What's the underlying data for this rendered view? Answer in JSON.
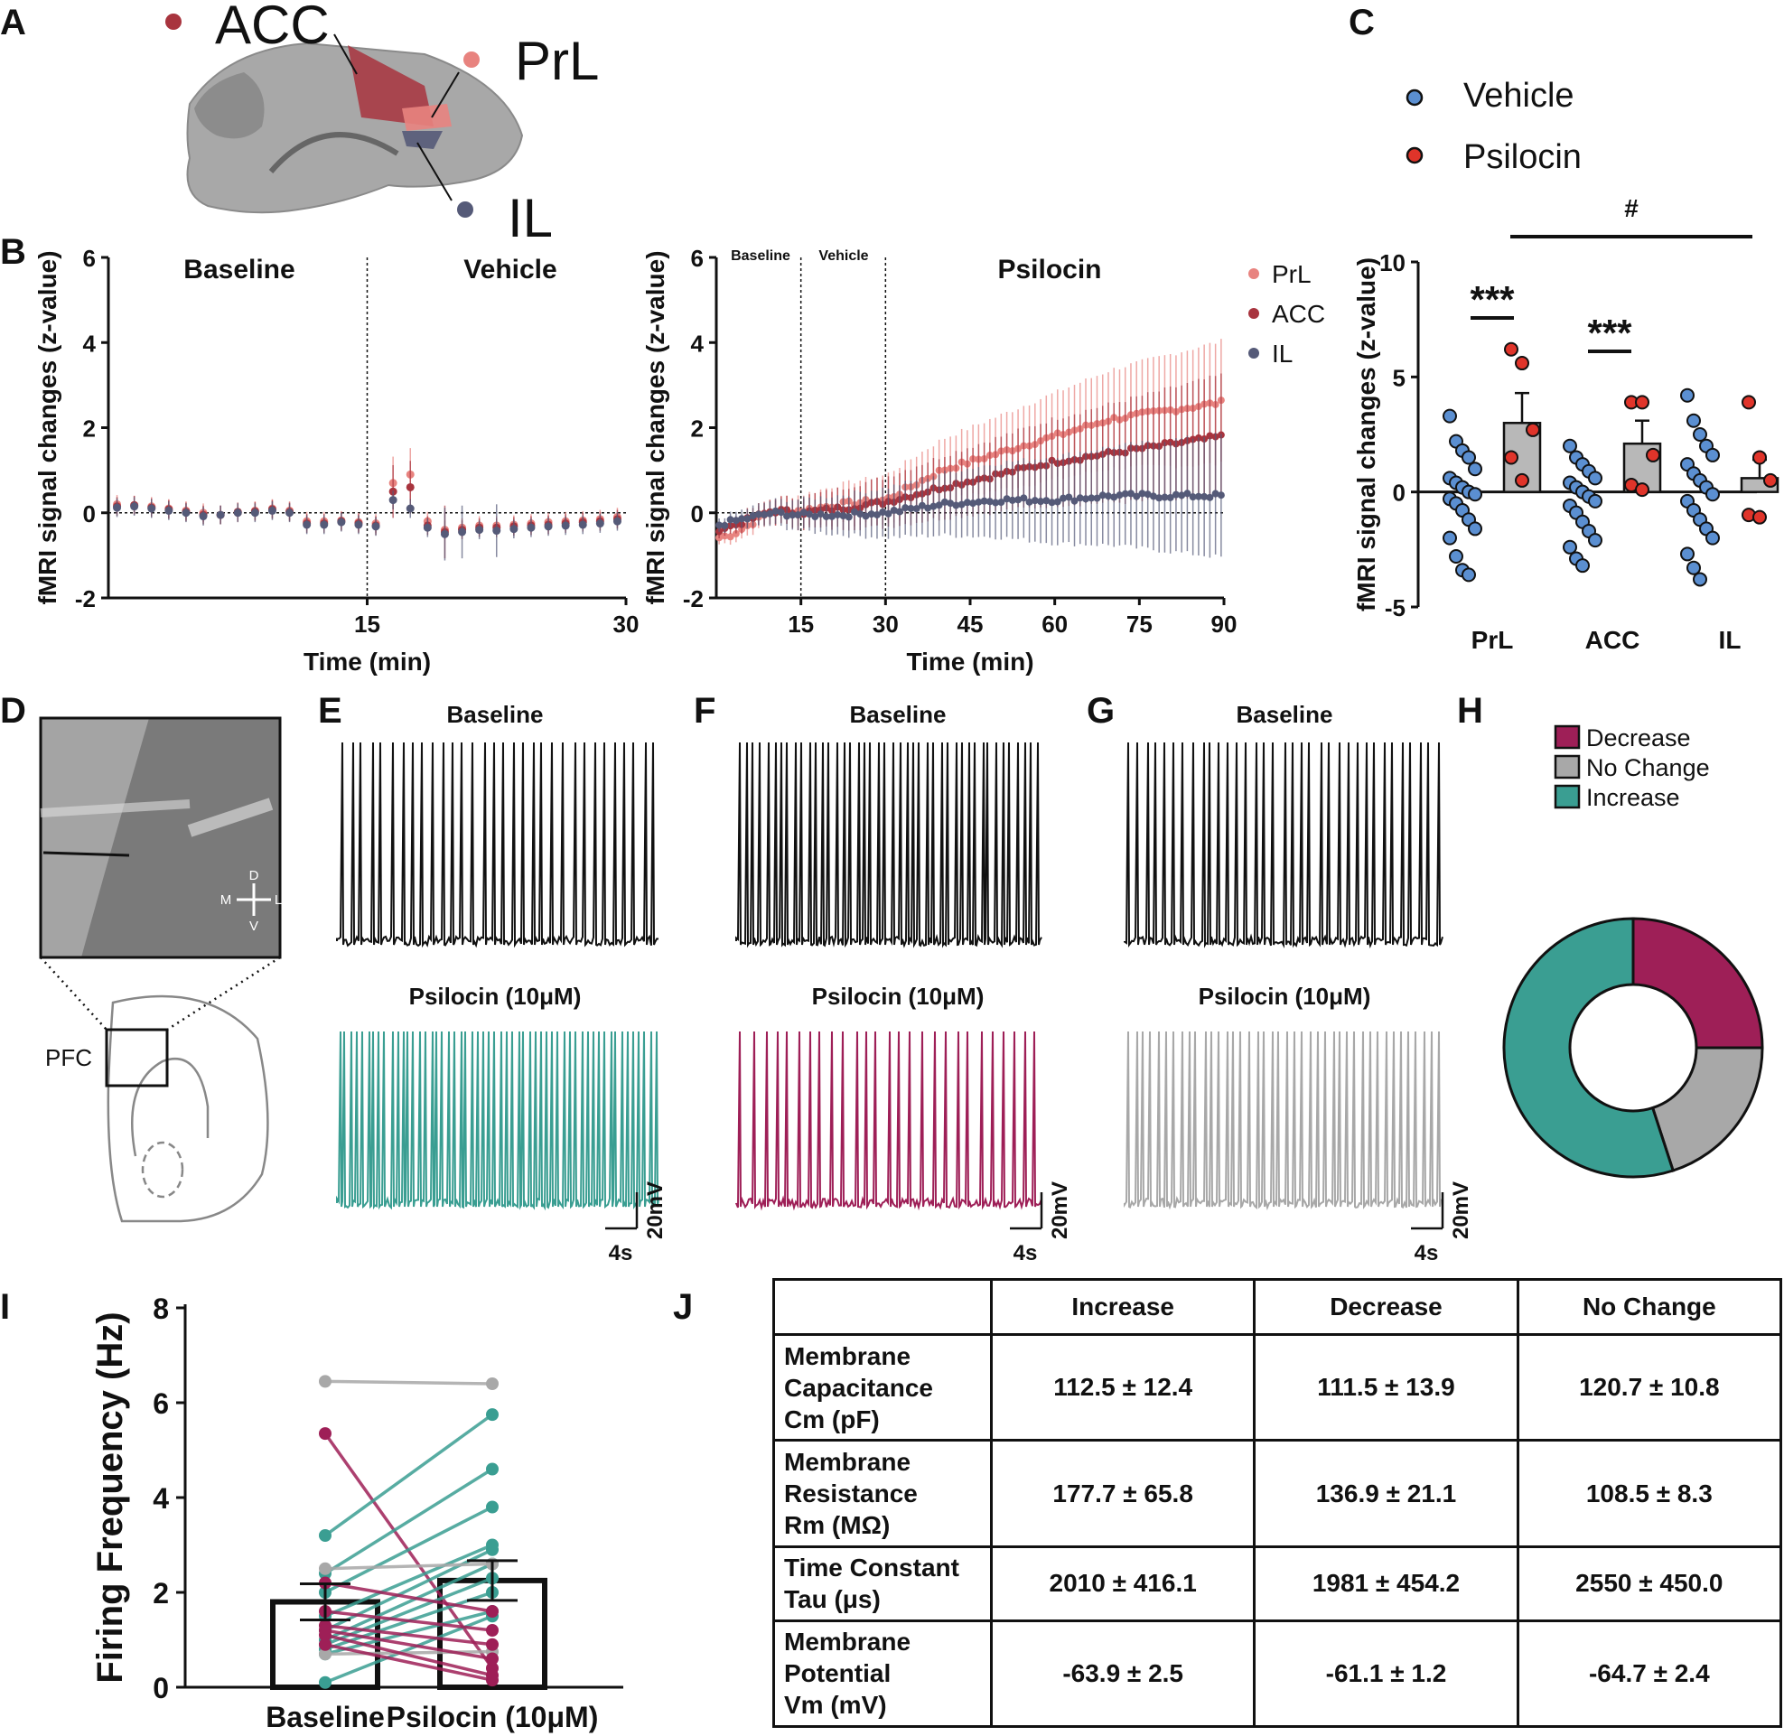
{
  "panel_letters": [
    "A",
    "B",
    "C",
    "D",
    "E",
    "F",
    "G",
    "H",
    "I",
    "J"
  ],
  "colors": {
    "prl": "#e8837f",
    "acc": "#a8343e",
    "il": "#555a78",
    "vehicle": "#5b8fd1",
    "psilocin": "#e0342a",
    "decrease": "#9e1f57",
    "nochange": "#a8a8a8",
    "increase": "#3a9e92",
    "bar": "#b8b8b8"
  },
  "panel_a": {
    "labels": [
      {
        "text": "ACC",
        "color": "#a8343e"
      },
      {
        "text": "PrL",
        "color": "#e8837f"
      },
      {
        "text": "IL",
        "color": "#555a78"
      }
    ]
  },
  "chart_data": [
    {
      "id": "B-left",
      "type": "scatter",
      "title": "",
      "ylabel": "fMRI signal changes (z-value)",
      "xlabel": "Time (min)",
      "xlim": [
        0,
        30
      ],
      "ylim": [
        -2,
        6
      ],
      "yticks": [
        "-2",
        "0",
        "2",
        "4",
        "6"
      ],
      "xticks": [
        "15",
        "30"
      ],
      "phase_labels": [
        "Baseline",
        "Vehicle"
      ],
      "series": [
        {
          "name": "PrL",
          "values": [
            0.2,
            0.18,
            0.15,
            0.1,
            0.05,
            0.0,
            -0.05,
            0.0,
            0.05,
            0.1,
            0.05,
            -0.2,
            -0.2,
            -0.18,
            -0.22,
            -0.25,
            0.7,
            0.9,
            -0.2,
            -0.4,
            -0.35,
            -0.3,
            -0.3,
            -0.28,
            -0.25,
            -0.22,
            -0.2,
            -0.18,
            -0.15,
            -0.1
          ]
        },
        {
          "name": "ACC",
          "values": [
            0.15,
            0.18,
            0.12,
            0.08,
            0.02,
            -0.05,
            -0.05,
            0.02,
            0.03,
            0.08,
            0.02,
            -0.25,
            -0.25,
            -0.2,
            -0.25,
            -0.3,
            0.5,
            0.6,
            -0.3,
            -0.45,
            -0.4,
            -0.35,
            -0.35,
            -0.32,
            -0.3,
            -0.28,
            -0.25,
            -0.22,
            -0.2,
            -0.15
          ]
        },
        {
          "name": "IL",
          "values": [
            0.12,
            0.15,
            0.1,
            0.05,
            0.0,
            -0.08,
            -0.05,
            0.0,
            0.0,
            0.05,
            0.0,
            -0.28,
            -0.28,
            -0.22,
            -0.28,
            -0.32,
            0.3,
            0.1,
            -0.35,
            -0.5,
            -0.45,
            -0.4,
            -0.42,
            -0.38,
            -0.35,
            -0.32,
            -0.3,
            -0.28,
            -0.25,
            -0.2
          ]
        }
      ]
    },
    {
      "id": "B-right",
      "type": "scatter",
      "title": "",
      "ylabel": "fMRI signal changes (z-value)",
      "xlabel": "Time (min)",
      "xlim": [
        0,
        90
      ],
      "ylim": [
        -2,
        6
      ],
      "yticks": [
        "-2",
        "0",
        "2",
        "4",
        "6"
      ],
      "xticks": [
        "15",
        "30",
        "45",
        "60",
        "75",
        "90"
      ],
      "phase_labels": [
        "Baseline",
        "Vehicle",
        "Psilocin"
      ],
      "series": [
        {
          "name": "PrL",
          "knots": [
            [
              0,
              -0.6
            ],
            [
              3,
              -0.5
            ],
            [
              10,
              0.05
            ],
            [
              15,
              0.05
            ],
            [
              22,
              0.2
            ],
            [
              30,
              0.3
            ],
            [
              40,
              1.0
            ],
            [
              50,
              1.4
            ],
            [
              60,
              1.8
            ],
            [
              70,
              2.2
            ],
            [
              80,
              2.4
            ],
            [
              90,
              2.6
            ]
          ]
        },
        {
          "name": "ACC",
          "knots": [
            [
              0,
              -0.4
            ],
            [
              3,
              -0.3
            ],
            [
              10,
              0.05
            ],
            [
              15,
              0.0
            ],
            [
              22,
              0.1
            ],
            [
              30,
              0.25
            ],
            [
              40,
              0.6
            ],
            [
              50,
              0.9
            ],
            [
              60,
              1.2
            ],
            [
              70,
              1.4
            ],
            [
              80,
              1.6
            ],
            [
              90,
              1.8
            ]
          ]
        },
        {
          "name": "IL",
          "knots": [
            [
              0,
              -0.3
            ],
            [
              3,
              -0.2
            ],
            [
              10,
              0.0
            ],
            [
              15,
              -0.05
            ],
            [
              22,
              -0.05
            ],
            [
              30,
              0.0
            ],
            [
              40,
              0.2
            ],
            [
              50,
              0.3
            ],
            [
              60,
              0.3
            ],
            [
              70,
              0.4
            ],
            [
              80,
              0.4
            ],
            [
              90,
              0.4
            ]
          ]
        }
      ]
    },
    {
      "id": "C",
      "type": "bar",
      "ylabel": "fMRI signal changes (z-value)",
      "categories": [
        "PrL",
        "ACC",
        "IL"
      ],
      "ylim": [
        -5,
        10
      ],
      "yticks": [
        "-5",
        "0",
        "5",
        "10"
      ],
      "series": [
        {
          "name": "Vehicle",
          "values": [
            0.0,
            0.0,
            0.0
          ],
          "points": [
            [
              3.3,
              2.2,
              1.8,
              1.5,
              1.0,
              0.6,
              0.4,
              0.2,
              0.0,
              -0.1,
              -0.3,
              -0.5,
              -0.8,
              -1.2,
              -1.6,
              -2.0,
              -2.8,
              -3.4,
              -3.6
            ],
            [
              2.0,
              1.5,
              1.2,
              0.9,
              0.6,
              0.4,
              0.2,
              0.0,
              -0.2,
              -0.4,
              -0.6,
              -0.9,
              -1.3,
              -1.7,
              -2.1,
              -2.4,
              -2.9,
              -3.2
            ],
            [
              4.2,
              3.1,
              2.5,
              2.0,
              1.6,
              1.2,
              0.8,
              0.5,
              0.2,
              -0.1,
              -0.4,
              -0.8,
              -1.2,
              -1.6,
              -2.0,
              -2.7,
              -3.3,
              -3.8
            ]
          ]
        },
        {
          "name": "Psilocin",
          "values": [
            3.0,
            2.1,
            0.6
          ],
          "errors": [
            1.3,
            1.0,
            0.8
          ],
          "points": [
            [
              6.2,
              5.6,
              2.7,
              1.5,
              0.5
            ],
            [
              3.9,
              3.9,
              1.6,
              0.3,
              0.1
            ],
            [
              3.9,
              1.5,
              0.5,
              -1.0,
              -1.1
            ]
          ]
        }
      ],
      "annotations": [
        "***",
        "***",
        "#"
      ]
    },
    {
      "id": "H",
      "type": "pie",
      "labels": [
        "Decrease",
        "No Change",
        "Increase"
      ],
      "values": [
        25,
        20,
        55
      ]
    },
    {
      "id": "I",
      "type": "bar",
      "ylabel": "Firing Frequency (Hz)",
      "categories": [
        "Baseline",
        "Psilocin (10μM)"
      ],
      "ylim": [
        0,
        8
      ],
      "yticks": [
        "0",
        "2",
        "4",
        "6",
        "8"
      ],
      "values": [
        1.8,
        2.25
      ],
      "errors": [
        0.38,
        0.42
      ],
      "pairs": [
        {
          "g": "nochange",
          "b": 6.45,
          "p": 6.4
        },
        {
          "g": "decrease",
          "b": 5.35,
          "p": 0.4
        },
        {
          "g": "increase",
          "b": 3.2,
          "p": 5.75
        },
        {
          "g": "increase",
          "b": 2.4,
          "p": 4.6
        },
        {
          "g": "increase",
          "b": 2.0,
          "p": 3.8
        },
        {
          "g": "increase",
          "b": 1.5,
          "p": 3.0
        },
        {
          "g": "increase",
          "b": 1.2,
          "p": 2.9
        },
        {
          "g": "increase",
          "b": 1.0,
          "p": 2.6
        },
        {
          "g": "increase",
          "b": 0.9,
          "p": 2.3
        },
        {
          "g": "increase",
          "b": 0.8,
          "p": 2.0
        },
        {
          "g": "increase",
          "b": 0.7,
          "p": 1.6
        },
        {
          "g": "increase",
          "b": 0.1,
          "p": 1.5
        },
        {
          "g": "nochange",
          "b": 2.5,
          "p": 2.6
        },
        {
          "g": "nochange",
          "b": 0.7,
          "p": 0.75
        },
        {
          "g": "decrease",
          "b": 2.2,
          "p": 1.6
        },
        {
          "g": "decrease",
          "b": 1.6,
          "p": 1.2
        },
        {
          "g": "decrease",
          "b": 1.3,
          "p": 0.9
        },
        {
          "g": "decrease",
          "b": 1.2,
          "p": 0.6
        },
        {
          "g": "decrease",
          "b": 1.1,
          "p": 0.25
        },
        {
          "g": "decrease",
          "b": 0.9,
          "p": 0.15
        }
      ]
    }
  ],
  "panel_c": {
    "legend": [
      "Vehicle",
      "Psilocin"
    ]
  },
  "panel_d": {
    "label": "PFC",
    "compass": {
      "d": "D",
      "v": "V",
      "m": "M",
      "l": "L"
    }
  },
  "traces": {
    "baseline_title": "Baseline",
    "psilocin_title": "Psilocin (10μM)",
    "scale_v": "20mV",
    "scale_t": "4s"
  },
  "table": {
    "headers": [
      "",
      "Increase",
      "Decrease",
      "No Change"
    ],
    "rows": [
      {
        "label": [
          "Membrane",
          "Capacitance",
          "Cm (pF)"
        ],
        "values": [
          "112.5 ± 12.4",
          "111.5 ± 13.9",
          "120.7 ± 10.8"
        ]
      },
      {
        "label": [
          "Membrane",
          "Resistance",
          "Rm (MΩ)"
        ],
        "values": [
          "177.7 ± 65.8",
          "136.9 ± 21.1",
          "108.5 ± 8.3"
        ]
      },
      {
        "label": [
          "Time Constant",
          "Tau (μs)"
        ],
        "values": [
          "2010 ± 416.1",
          "1981 ± 454.2",
          "2550 ± 450.0"
        ]
      },
      {
        "label": [
          "Membrane",
          "Potential",
          "Vm (mV)"
        ],
        "values": [
          "-63.9 ± 2.5",
          "-61.1 ± 1.2",
          "-64.7 ± 2.4"
        ]
      }
    ]
  }
}
